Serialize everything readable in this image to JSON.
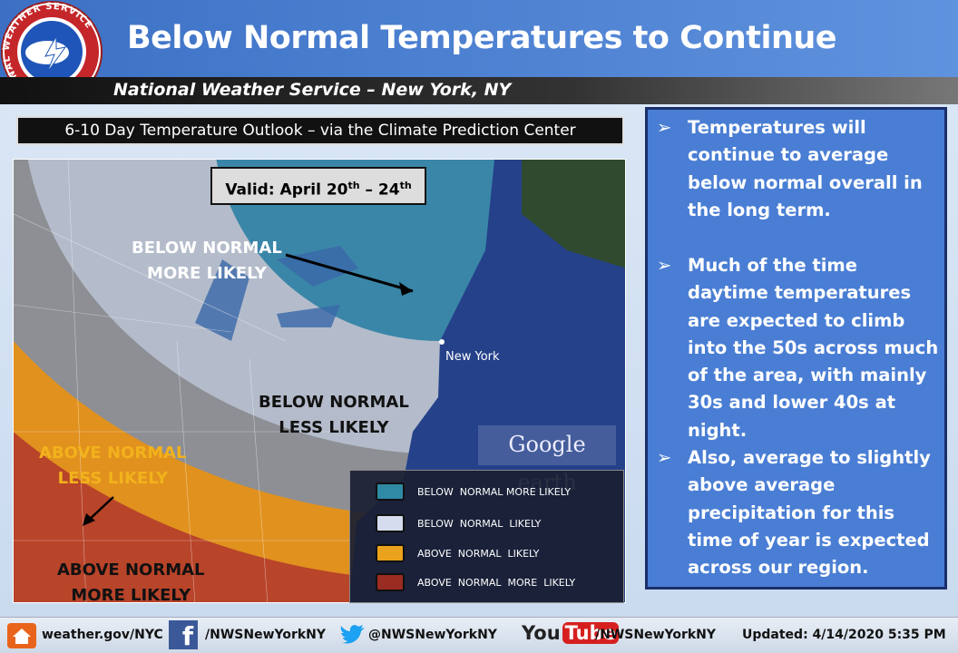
{
  "header": {
    "logo_text": "NATIONAL WEATHER SERVICE",
    "title": "Below Normal Temperatures to Continue",
    "subtitle": "National Weather Service – New York, NY"
  },
  "map": {
    "title": "6-10 Day Temperature Outlook – via the Climate Prediction Center",
    "valid_parts": [
      "Valid: April 20",
      "th",
      " – 24",
      "th"
    ],
    "regions": [
      {
        "lines": [
          "BELOW NORMAL",
          "MORE LIKELY"
        ],
        "color": "#ffffff"
      },
      {
        "lines": [
          "BELOW NORMAL",
          "LESS LIKELY"
        ],
        "color": "#111111"
      },
      {
        "lines": [
          "ABOVE NORMAL",
          "LESS LIKELY"
        ],
        "color": "#f2b21c"
      },
      {
        "lines": [
          "ABOVE NORMAL",
          "MORE LIKELY"
        ],
        "color": "#111111"
      }
    ],
    "city": "New York",
    "watermark": "Google earth",
    "legend": [
      {
        "label": "BELOW  NORMAL MORE LIKELY",
        "color": "#2f8aa6"
      },
      {
        "label": "BELOW  NORMAL  LIKELY",
        "color": "#d4dcee"
      },
      {
        "label": "ABOVE  NORMAL  LIKELY",
        "color": "#eba21c"
      },
      {
        "label": "ABOVE  NORMAL  MORE  LIKELY",
        "color": "#9a2c22"
      }
    ]
  },
  "bullets": [
    "Temperatures will continue to average below normal overall in the long term.",
    "Much of the time daytime temperatures are expected to climb into the 50s across much of the area, with mainly 30s and lower 40s at night.",
    "Also, average to slightly above average precipitation for this time of year is expected across our region."
  ],
  "footer": {
    "website": "weather.gov/NYC",
    "facebook_icon": "f",
    "facebook": "/NWSNewYorkNY",
    "twitter": "@NWSNewYorkNY",
    "youtube_logo": [
      "You",
      "Tube"
    ],
    "youtube": "/NWSNewYorkNY",
    "updated": "Updated: 4/14/2020 5:35 PM"
  }
}
